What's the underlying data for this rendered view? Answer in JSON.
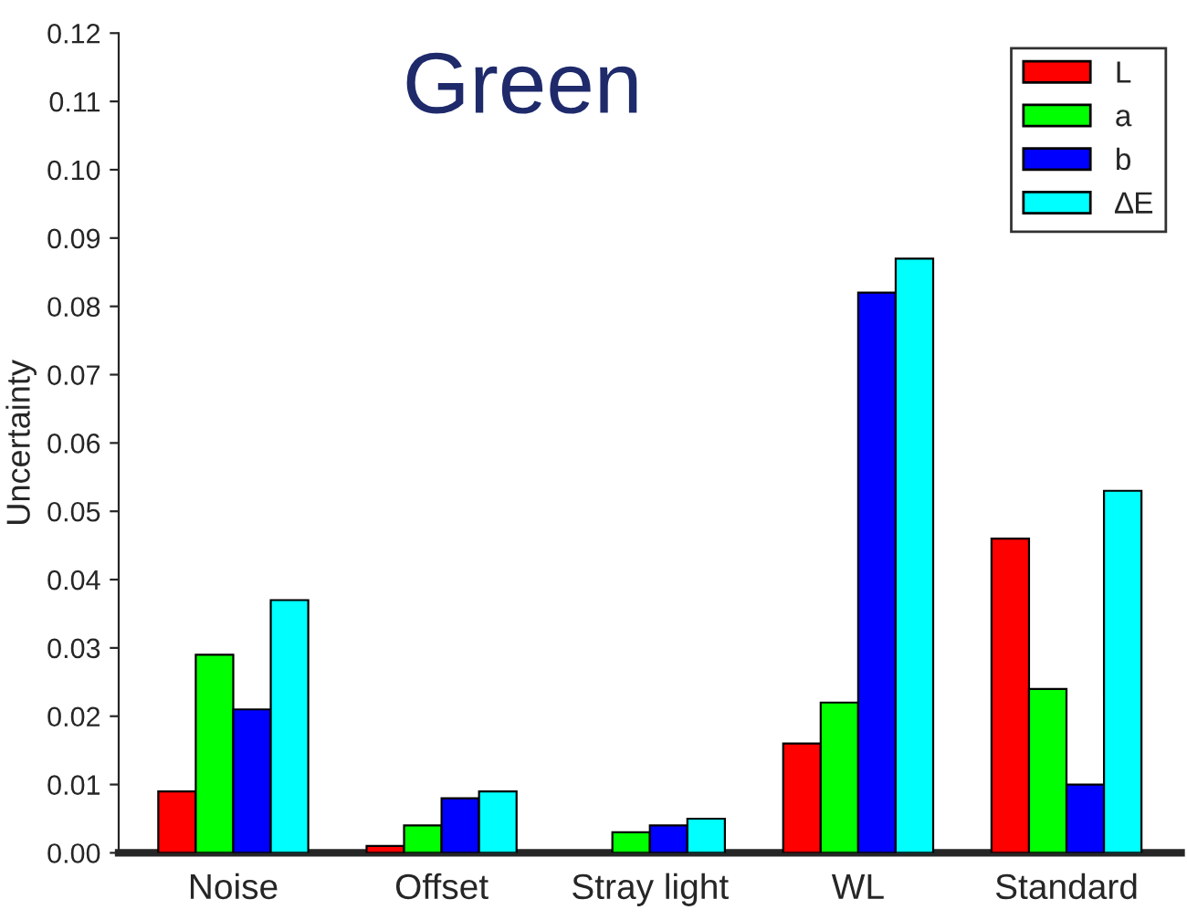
{
  "chart_data": {
    "type": "bar",
    "title": "Green",
    "ylabel": "Uncertainty",
    "categories": [
      "Noise",
      "Offset",
      "Stray light",
      "WL",
      "Standard"
    ],
    "series": [
      {
        "name": "L",
        "color": "#ff0000",
        "values": [
          0.009,
          0.001,
          null,
          0.016,
          0.046
        ]
      },
      {
        "name": "a",
        "color": "#00ff00",
        "values": [
          0.029,
          0.004,
          0.003,
          0.022,
          0.024
        ]
      },
      {
        "name": "b",
        "color": "#0000ff",
        "values": [
          0.021,
          0.008,
          0.004,
          0.082,
          0.01
        ]
      },
      {
        "name": "∆E",
        "color": "#00ffff",
        "values": [
          0.037,
          0.009,
          0.005,
          0.087,
          0.053
        ]
      }
    ],
    "ylim": [
      0,
      0.12
    ],
    "yticks": [
      {
        "value": 0,
        "label": "0.00"
      },
      {
        "value": 0.01,
        "label": "0.01"
      },
      {
        "value": 0.02,
        "label": "0.02"
      },
      {
        "value": 0.03,
        "label": "0.03"
      },
      {
        "value": 0.04,
        "label": "0.04"
      },
      {
        "value": 0.05,
        "label": "0.05"
      },
      {
        "value": 0.06,
        "label": "0.06"
      },
      {
        "value": 0.07,
        "label": "0.07"
      },
      {
        "value": 0.08,
        "label": "0.08"
      },
      {
        "value": 0.09,
        "label": "0.09"
      },
      {
        "value": 0.1,
        "label": "0.10"
      },
      {
        "value": 0.11,
        "label": "0.11"
      },
      {
        "value": 0.12,
        "label": "0.12"
      }
    ],
    "grid": false,
    "legend": "top right"
  }
}
